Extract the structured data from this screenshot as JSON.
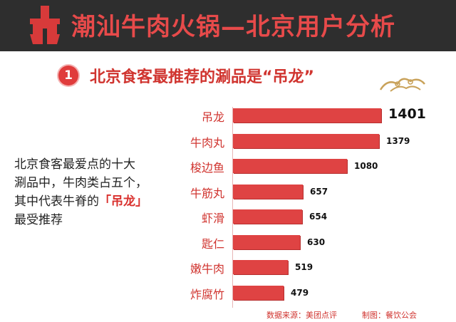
{
  "banner": {
    "title": "潮汕牛肉火锅—北京用户分析"
  },
  "headline": {
    "number": "1",
    "text": "北京食客最推荐的涮品是“吊龙”"
  },
  "description": {
    "line1": "北京食客最爱点的十大",
    "line2": "涮品中，牛肉类占五个，",
    "line3_prefix": "其中代表牛脊的",
    "line3_highlight": "「吊龙」",
    "line4": "最受推荐"
  },
  "chart_data": {
    "type": "bar",
    "orientation": "horizontal",
    "categories": [
      "吊龙",
      "牛肉丸",
      "梭边鱼",
      "牛筋丸",
      "虾滑",
      "匙仁",
      "嫩牛肉",
      "炸腐竹"
    ],
    "values": [
      1401,
      1379,
      1080,
      657,
      654,
      630,
      519,
      479
    ],
    "title": "北京食客最推荐的涮品是“吊龙”",
    "bar_color": "#df4343"
  },
  "footer": {
    "source": "数据来源：美团点评",
    "maker": "制图：餐饮公会"
  },
  "colors": {
    "accent": "#d0342f",
    "banner_bg": "#2e2e2e"
  }
}
